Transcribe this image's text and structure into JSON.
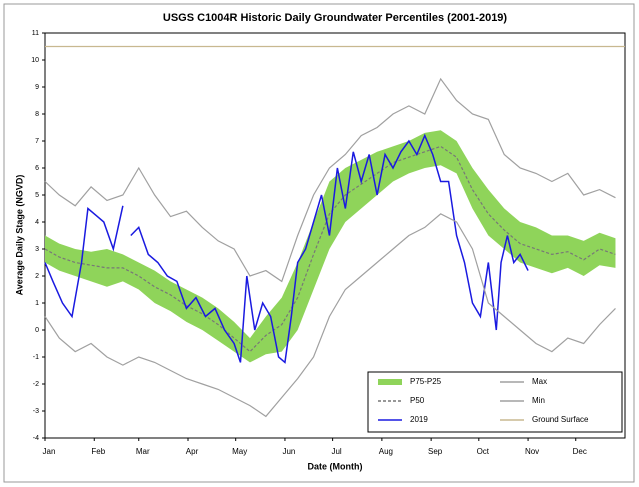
{
  "chart_data": {
    "type": "line",
    "title": "USGS C1004R Historic Daily Groundwater Percentiles (2001-2019)",
    "xlabel": "Date (Month)",
    "ylabel": "Average Daily Stage (NGVD)",
    "xlim": [
      1,
      366
    ],
    "ylim": [
      -4,
      11
    ],
    "yticks": [
      -4,
      -3,
      -2,
      -1,
      0,
      1,
      2,
      3,
      4,
      5,
      6,
      7,
      8,
      9,
      10,
      11
    ],
    "xticks": [
      {
        "value": 1,
        "label": "Jan"
      },
      {
        "value": 32,
        "label": "Feb"
      },
      {
        "value": 60,
        "label": "Mar"
      },
      {
        "value": 91,
        "label": "Apr"
      },
      {
        "value": 121,
        "label": "May"
      },
      {
        "value": 152,
        "label": "Jun"
      },
      {
        "value": 182,
        "label": "Jul"
      },
      {
        "value": 213,
        "label": "Aug"
      },
      {
        "value": 244,
        "label": "Sep"
      },
      {
        "value": 274,
        "label": "Oct"
      },
      {
        "value": 305,
        "label": "Nov"
      },
      {
        "value": 335,
        "label": "Dec"
      }
    ],
    "x": [
      1,
      10,
      20,
      30,
      40,
      50,
      60,
      70,
      80,
      90,
      100,
      110,
      120,
      130,
      140,
      150,
      160,
      170,
      180,
      190,
      200,
      210,
      220,
      230,
      240,
      250,
      260,
      270,
      280,
      290,
      300,
      310,
      320,
      330,
      340,
      350,
      360
    ],
    "band": {
      "name": "P75-P25",
      "color": "#8fd45a",
      "upper": [
        3.5,
        3.2,
        3.0,
        2.9,
        3.0,
        2.8,
        2.5,
        2.2,
        1.8,
        1.5,
        1.2,
        0.8,
        0.3,
        -0.3,
        0.5,
        1.2,
        2.5,
        4.0,
        5.5,
        6.0,
        6.3,
        6.6,
        6.8,
        7.0,
        7.3,
        7.4,
        7.0,
        6.0,
        5.2,
        4.5,
        4.0,
        3.8,
        3.5,
        3.5,
        3.3,
        3.6,
        3.4
      ],
      "lower": [
        2.5,
        2.2,
        2.0,
        1.8,
        1.6,
        1.8,
        1.5,
        1.0,
        0.7,
        0.3,
        0.0,
        -0.4,
        -0.8,
        -1.2,
        -0.9,
        -0.8,
        0.0,
        1.5,
        3.0,
        4.0,
        4.5,
        5.0,
        5.5,
        5.8,
        6.0,
        6.1,
        5.8,
        4.5,
        3.5,
        3.0,
        2.5,
        2.3,
        2.1,
        2.3,
        2.0,
        2.4,
        2.3
      ]
    },
    "series": [
      {
        "name": "P50",
        "color": "#777777",
        "dash": true,
        "values": [
          3.0,
          2.7,
          2.5,
          2.4,
          2.3,
          2.3,
          2.0,
          1.6,
          1.3,
          0.9,
          0.6,
          0.2,
          -0.3,
          -0.8,
          -0.2,
          0.2,
          1.2,
          2.8,
          4.3,
          5.0,
          5.4,
          5.8,
          6.2,
          6.4,
          6.6,
          6.8,
          6.4,
          5.2,
          4.3,
          3.7,
          3.2,
          3.0,
          2.8,
          2.9,
          2.6,
          3.0,
          2.8
        ]
      },
      {
        "name": "2019",
        "color": "#1a1ae0",
        "x": [
          1,
          6,
          12,
          18,
          24,
          28,
          34,
          38,
          44,
          50,
          52,
          55,
          60,
          66,
          72,
          78,
          84,
          90,
          96,
          102,
          108,
          114,
          120,
          124,
          128,
          133,
          138,
          143,
          148,
          152,
          156,
          160,
          165,
          170,
          175,
          180,
          185,
          190,
          195,
          200,
          205,
          210,
          215,
          220,
          225,
          230,
          235,
          240,
          245,
          250,
          255,
          260,
          265,
          270,
          275,
          280,
          285,
          288,
          292,
          296,
          300,
          305
        ],
        "values": [
          2.5,
          1.8,
          1.0,
          0.5,
          2.5,
          4.5,
          4.2,
          4.0,
          3.0,
          4.6,
          null,
          3.5,
          3.8,
          2.8,
          2.5,
          2.0,
          1.8,
          0.8,
          1.2,
          0.5,
          0.8,
          0.0,
          -0.5,
          -1.2,
          2.0,
          0.0,
          1.0,
          0.5,
          -1.0,
          -1.2,
          0.5,
          2.5,
          3.0,
          4.0,
          5.0,
          3.5,
          6.0,
          4.5,
          6.6,
          5.5,
          6.5,
          5.0,
          6.5,
          6.0,
          6.6,
          7.0,
          6.5,
          7.2,
          6.5,
          5.5,
          5.5,
          3.5,
          2.5,
          1.0,
          0.5,
          2.5,
          0.0,
          2.5,
          3.5,
          2.5,
          2.8,
          2.2
        ]
      },
      {
        "name": "Max",
        "color": "#a0a0a0",
        "values": [
          5.5,
          5.0,
          4.6,
          5.3,
          4.8,
          5.0,
          6.0,
          5.0,
          4.2,
          4.4,
          3.8,
          3.3,
          3.0,
          2.0,
          2.2,
          1.8,
          3.5,
          5.0,
          6.0,
          6.5,
          7.2,
          7.5,
          8.0,
          8.3,
          8.0,
          9.3,
          8.5,
          8.0,
          7.8,
          6.5,
          6.0,
          5.8,
          5.5,
          5.8,
          5.0,
          5.2,
          4.9
        ]
      },
      {
        "name": "Min",
        "color": "#a0a0a0",
        "values": [
          0.5,
          -0.3,
          -0.8,
          -0.5,
          -1.0,
          -1.3,
          -1.0,
          -1.2,
          -1.5,
          -1.8,
          -2.0,
          -2.2,
          -2.5,
          -2.8,
          -3.2,
          -2.5,
          -1.8,
          -1.0,
          0.5,
          1.5,
          2.0,
          2.5,
          3.0,
          3.5,
          3.8,
          4.3,
          4.0,
          3.0,
          1.0,
          0.5,
          0.0,
          -0.5,
          -0.8,
          -0.3,
          -0.5,
          0.2,
          0.8
        ]
      },
      {
        "name": "Ground Surface",
        "color": "#c8b890",
        "x": [
          1,
          366
        ],
        "values": [
          10.5,
          10.5
        ]
      }
    ]
  }
}
